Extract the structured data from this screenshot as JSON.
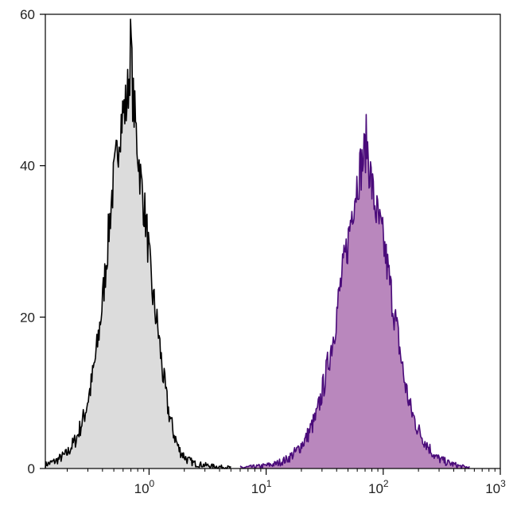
{
  "chart_data": {
    "type": "area",
    "title": "",
    "xlabel": "",
    "ylabel": "",
    "xscale": "log",
    "xlim": [
      0.13,
      1000
    ],
    "ylim": [
      0,
      60
    ],
    "grid": false,
    "legend": "none",
    "x_ticks": [
      {
        "base": "10",
        "exp": "0",
        "value": 1
      },
      {
        "base": "10",
        "exp": "1",
        "value": 10
      },
      {
        "base": "10",
        "exp": "2",
        "value": 100
      },
      {
        "base": "10",
        "exp": "3",
        "value": 1000
      }
    ],
    "y_ticks": [
      {
        "label": "0",
        "value": 0
      },
      {
        "label": "20",
        "value": 20
      },
      {
        "label": "40",
        "value": 40
      },
      {
        "label": "60",
        "value": 60
      }
    ],
    "series": [
      {
        "fill": "#dcdcdc",
        "stroke": "#000000",
        "points": [
          [
            0.13,
            0.5
          ],
          [
            0.16,
            1
          ],
          [
            0.2,
            2
          ],
          [
            0.24,
            4
          ],
          [
            0.28,
            7
          ],
          [
            0.32,
            11
          ],
          [
            0.36,
            16
          ],
          [
            0.4,
            22
          ],
          [
            0.44,
            29
          ],
          [
            0.48,
            36
          ],
          [
            0.52,
            40
          ],
          [
            0.56,
            45
          ],
          [
            0.6,
            47
          ],
          [
            0.64,
            48
          ],
          [
            0.68,
            52
          ],
          [
            0.7,
            57.5
          ],
          [
            0.72,
            50
          ],
          [
            0.78,
            44
          ],
          [
            0.85,
            38
          ],
          [
            0.95,
            32
          ],
          [
            1.05,
            24
          ],
          [
            1.2,
            18
          ],
          [
            1.3,
            13
          ],
          [
            1.45,
            8
          ],
          [
            1.6,
            5
          ],
          [
            1.8,
            2.5
          ],
          [
            2.1,
            1.2
          ],
          [
            2.5,
            0.6
          ],
          [
            3.5,
            0.3
          ],
          [
            5,
            0.1
          ]
        ]
      },
      {
        "fill": "#b987bd",
        "stroke": "#4a0b7a",
        "points": [
          [
            6,
            0.1
          ],
          [
            9,
            0.3
          ],
          [
            12,
            0.6
          ],
          [
            15,
            1.2
          ],
          [
            18,
            2.2
          ],
          [
            22,
            4
          ],
          [
            27,
            7
          ],
          [
            32,
            12
          ],
          [
            38,
            18
          ],
          [
            43,
            24
          ],
          [
            50,
            30
          ],
          [
            55,
            35
          ],
          [
            62,
            39
          ],
          [
            68,
            41
          ],
          [
            72,
            43.5
          ],
          [
            76,
            40
          ],
          [
            82,
            36
          ],
          [
            90,
            33
          ],
          [
            100,
            30
          ],
          [
            110,
            26
          ],
          [
            120,
            22
          ],
          [
            135,
            17
          ],
          [
            150,
            12
          ],
          [
            170,
            8
          ],
          [
            200,
            5
          ],
          [
            240,
            3
          ],
          [
            280,
            1.5
          ],
          [
            350,
            0.8
          ],
          [
            450,
            0.3
          ],
          [
            550,
            0.1
          ]
        ]
      }
    ]
  }
}
